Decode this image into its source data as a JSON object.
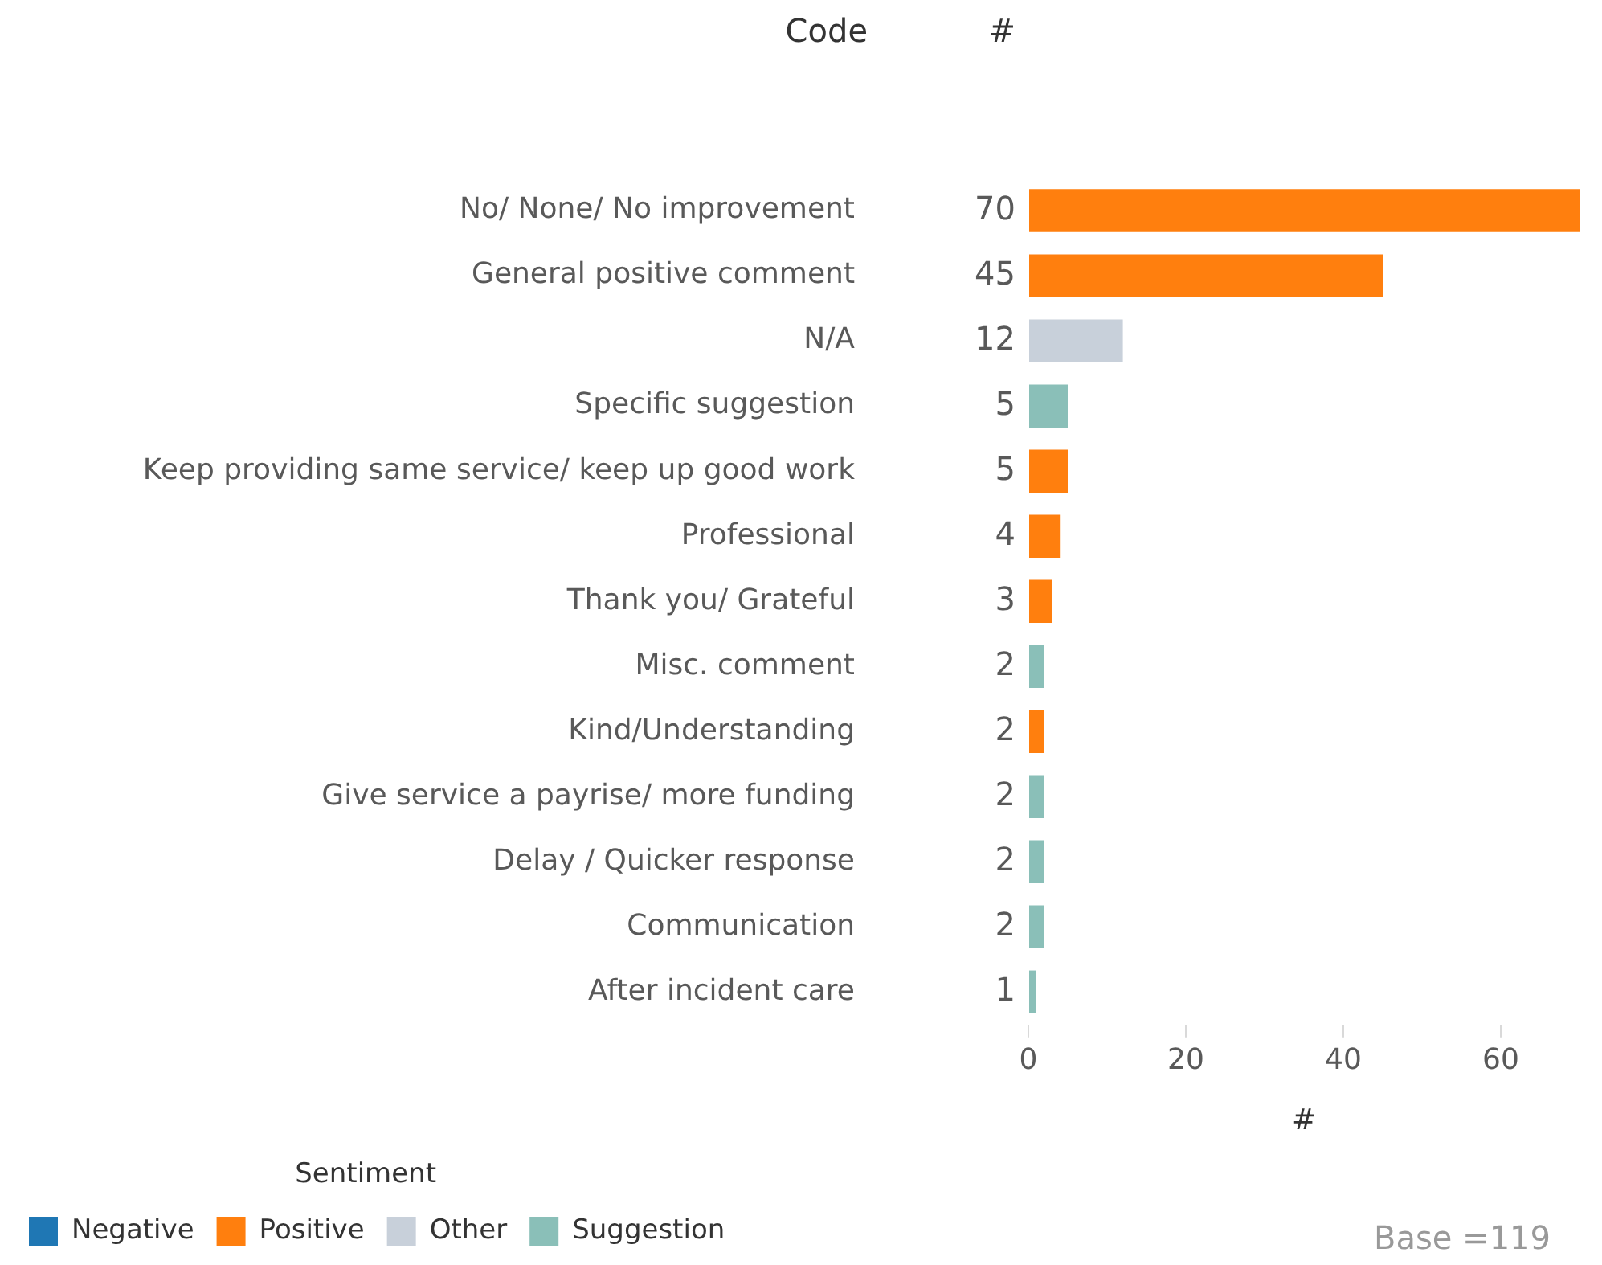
{
  "chart_data": {
    "type": "bar",
    "orientation": "horizontal",
    "ylabel": "Code",
    "xlabel": "#",
    "legend_title": "Sentiment",
    "legend": "bottom left",
    "data_labels": true,
    "grid": false,
    "categories": [
      "No/ None/ No improvement",
      "General positive comment",
      "N/A",
      "Specific suggestion",
      "Keep providing same service/ keep up good work",
      "Professional",
      "Thank you/ Grateful",
      "Misc. comment",
      "Kind/Understanding",
      "Give service a payrise/ more funding",
      "Delay / Quicker response",
      "Communication",
      "After incident care"
    ],
    "series": [
      {
        "name": "Negative",
        "color": "#1f77b4",
        "values": [
          null,
          null,
          null,
          null,
          null,
          null,
          null,
          null,
          null,
          null,
          null,
          null,
          null
        ]
      },
      {
        "name": "Positive",
        "color": "#ff7f0e",
        "values": [
          70,
          45,
          null,
          null,
          5,
          4,
          3,
          null,
          2,
          null,
          null,
          null,
          null
        ]
      },
      {
        "name": "Other",
        "color": "#c8d0da",
        "values": [
          null,
          null,
          12,
          null,
          null,
          null,
          null,
          null,
          null,
          null,
          null,
          null,
          null
        ]
      },
      {
        "name": "Suggestion",
        "color": "#8abfb8",
        "values": [
          null,
          null,
          null,
          5,
          null,
          null,
          null,
          2,
          null,
          2,
          2,
          2,
          1
        ]
      }
    ],
    "xlim": [
      0,
      70
    ],
    "xticks": [
      0,
      20,
      40,
      60
    ],
    "annotations": [
      "#",
      "Base =119"
    ]
  }
}
